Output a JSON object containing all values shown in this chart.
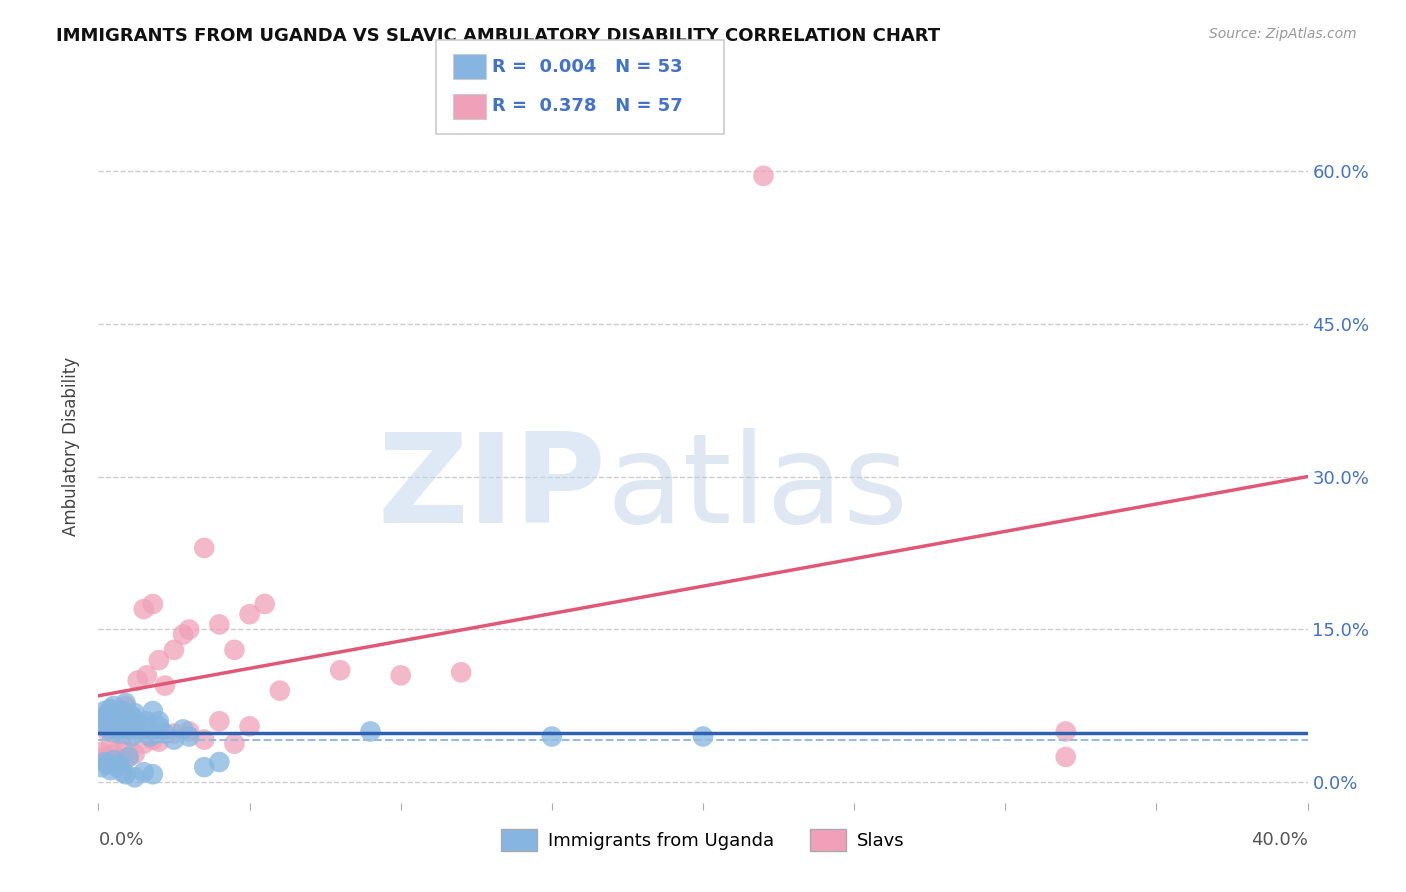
{
  "title": "IMMIGRANTS FROM UGANDA VS SLAVIC AMBULATORY DISABILITY CORRELATION CHART",
  "source": "Source: ZipAtlas.com",
  "ylabel": "Ambulatory Disability",
  "xlim": [
    0.0,
    0.4
  ],
  "ylim": [
    -0.02,
    0.68
  ],
  "ytick_vals": [
    0.0,
    0.15,
    0.3,
    0.45,
    0.6
  ],
  "xtick_vals": [
    0.0,
    0.05,
    0.1,
    0.15,
    0.2,
    0.25,
    0.3,
    0.35,
    0.4
  ],
  "r_uganda": 0.004,
  "n_uganda": 53,
  "r_slavs": 0.378,
  "n_slavs": 57,
  "background_color": "#ffffff",
  "grid_color": "#cccccc",
  "right_tick_color": "#4472c4",
  "scatter_color_uganda": "#85b5e0",
  "scatter_color_slavs": "#f0a0b8",
  "line_color_uganda": "#3060b0",
  "line_color_slavs": "#e05878",
  "dashed_line_color": "#99bbdd",
  "uganda_x": [
    0.001,
    0.002,
    0.002,
    0.003,
    0.003,
    0.004,
    0.004,
    0.005,
    0.005,
    0.006,
    0.006,
    0.007,
    0.007,
    0.008,
    0.008,
    0.009,
    0.009,
    0.01,
    0.01,
    0.011,
    0.011,
    0.012,
    0.013,
    0.014,
    0.015,
    0.016,
    0.017,
    0.018,
    0.019,
    0.02,
    0.001,
    0.002,
    0.003,
    0.004,
    0.005,
    0.006,
    0.007,
    0.008,
    0.009,
    0.01,
    0.012,
    0.015,
    0.018,
    0.02,
    0.022,
    0.025,
    0.028,
    0.03,
    0.035,
    0.04,
    0.09,
    0.15,
    0.2
  ],
  "uganda_y": [
    0.06,
    0.055,
    0.07,
    0.065,
    0.058,
    0.072,
    0.05,
    0.062,
    0.075,
    0.068,
    0.052,
    0.065,
    0.048,
    0.07,
    0.06,
    0.055,
    0.078,
    0.052,
    0.06,
    0.065,
    0.045,
    0.068,
    0.058,
    0.05,
    0.055,
    0.06,
    0.045,
    0.07,
    0.048,
    0.06,
    0.015,
    0.02,
    0.018,
    0.012,
    0.022,
    0.015,
    0.018,
    0.01,
    0.008,
    0.025,
    0.005,
    0.01,
    0.008,
    0.055,
    0.048,
    0.042,
    0.052,
    0.045,
    0.015,
    0.02,
    0.05,
    0.045,
    0.045
  ],
  "slavs_x": [
    0.001,
    0.002,
    0.002,
    0.003,
    0.004,
    0.004,
    0.005,
    0.005,
    0.006,
    0.007,
    0.008,
    0.008,
    0.009,
    0.01,
    0.011,
    0.012,
    0.013,
    0.015,
    0.016,
    0.018,
    0.02,
    0.022,
    0.025,
    0.028,
    0.03,
    0.035,
    0.04,
    0.045,
    0.05,
    0.055,
    0.001,
    0.002,
    0.003,
    0.004,
    0.005,
    0.006,
    0.007,
    0.008,
    0.009,
    0.01,
    0.012,
    0.015,
    0.018,
    0.02,
    0.025,
    0.03,
    0.035,
    0.04,
    0.045,
    0.05,
    0.06,
    0.08,
    0.1,
    0.12,
    0.22,
    0.32,
    0.32
  ],
  "slavs_y": [
    0.06,
    0.055,
    0.065,
    0.05,
    0.058,
    0.072,
    0.068,
    0.048,
    0.065,
    0.07,
    0.05,
    0.055,
    0.075,
    0.06,
    0.065,
    0.055,
    0.1,
    0.17,
    0.105,
    0.175,
    0.12,
    0.095,
    0.13,
    0.145,
    0.15,
    0.23,
    0.155,
    0.13,
    0.165,
    0.175,
    0.03,
    0.025,
    0.022,
    0.035,
    0.028,
    0.018,
    0.022,
    0.045,
    0.032,
    0.025,
    0.028,
    0.038,
    0.042,
    0.04,
    0.048,
    0.05,
    0.042,
    0.06,
    0.038,
    0.055,
    0.09,
    0.11,
    0.105,
    0.108,
    0.595,
    0.025,
    0.05
  ],
  "sl_line_x0": 0.0,
  "sl_line_y0": 0.085,
  "sl_line_x1": 0.4,
  "sl_line_y1": 0.3,
  "ug_line_y": 0.048,
  "dashed_line_y": 0.042
}
